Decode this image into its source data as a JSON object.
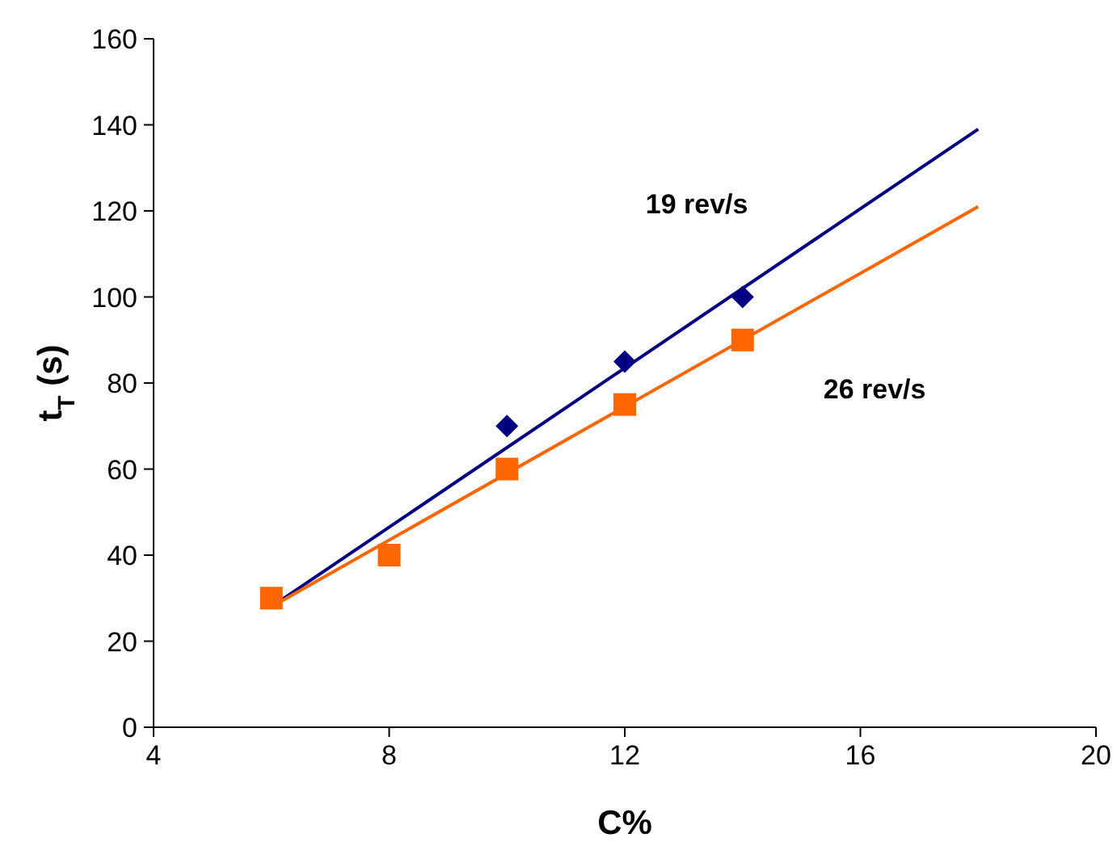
{
  "chart_data": {
    "type": "scatter",
    "xlabel": "C%",
    "ylabel": "t$_{T}$ (s)",
    "xlim": [
      4,
      20
    ],
    "xticks": [
      4,
      8,
      12,
      16,
      20
    ],
    "ylim": [
      0,
      160
    ],
    "yticks": [
      0,
      20,
      40,
      60,
      80,
      100,
      120,
      140,
      160
    ],
    "grid": false,
    "series": [
      {
        "type": "line",
        "color": "#000080",
        "x": [
          6,
          18
        ],
        "values": [
          28,
          139
        ],
        "marker": "none",
        "line_style": "solid"
      },
      {
        "type": "line",
        "color": "#ff6600",
        "x": [
          6,
          18
        ],
        "values": [
          28,
          121
        ],
        "marker": "none",
        "line_style": "solid"
      },
      {
        "name": "19 rev/s",
        "color": "#000080",
        "x": [
          10,
          12,
          14
        ],
        "values": [
          70,
          85,
          100
        ],
        "marker": "diamond"
      },
      {
        "name": "26 rev/s",
        "color": "#ff6600",
        "x": [
          6,
          8,
          10,
          12,
          14
        ],
        "values": [
          30,
          40,
          60,
          75,
          90
        ],
        "marker": "square"
      }
    ]
  }
}
